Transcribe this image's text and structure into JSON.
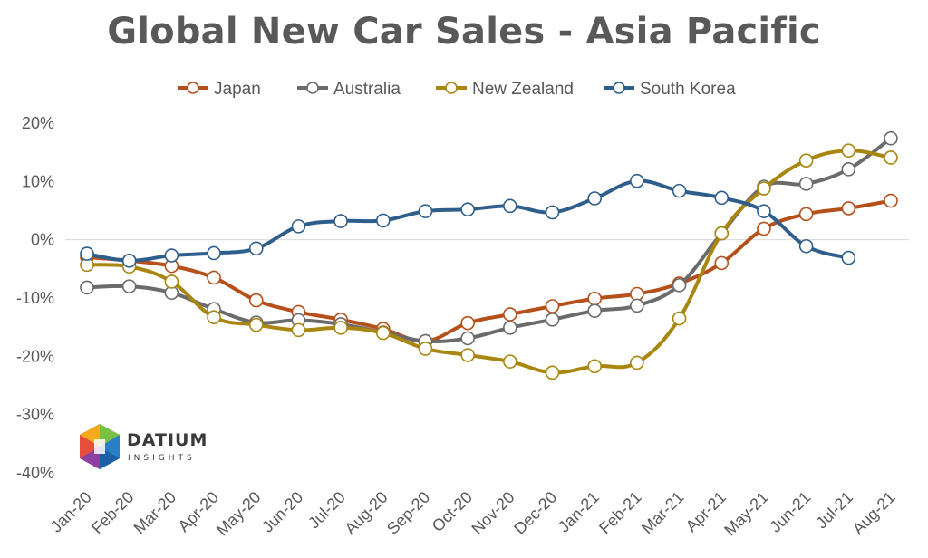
{
  "chart_data": {
    "type": "line",
    "title": "Global New Car Sales - Asia Pacific",
    "xlabel": "",
    "ylabel": "",
    "ylim": [
      -0.4,
      0.2
    ],
    "y_ticks": [
      "20%",
      "10%",
      "0%",
      "-10%",
      "-20%",
      "-30%",
      "-40%"
    ],
    "y_tick_values": [
      0.2,
      0.1,
      0.0,
      -0.1,
      -0.2,
      -0.3,
      -0.4
    ],
    "categories": [
      "Jan-20",
      "Feb-20",
      "Mar-20",
      "Apr-20",
      "May-20",
      "Jun-20",
      "Jul-20",
      "Aug-20",
      "Sep-20",
      "Oct-20",
      "Nov-20",
      "Dec-20",
      "Jan-21",
      "Feb-21",
      "Mar-21",
      "Apr-21",
      "May-21",
      "Jun-21",
      "Jul-21",
      "Aug-21"
    ],
    "legend_position": "top",
    "grid": false,
    "series": [
      {
        "name": "Japan",
        "color": "#B5501A",
        "values": [
          -0.03,
          -0.036,
          -0.045,
          -0.065,
          -0.104,
          -0.124,
          -0.137,
          -0.153,
          -0.174,
          -0.143,
          -0.128,
          -0.114,
          -0.101,
          -0.093,
          -0.075,
          -0.04,
          0.019,
          0.044,
          0.054,
          0.067
        ]
      },
      {
        "name": "Australia",
        "color": "#6B6B6B",
        "values": [
          -0.082,
          -0.08,
          -0.091,
          -0.119,
          -0.142,
          -0.138,
          -0.145,
          -0.159,
          -0.174,
          -0.169,
          -0.151,
          -0.137,
          -0.122,
          -0.113,
          -0.078,
          0.011,
          0.091,
          0.096,
          0.121,
          0.174
        ]
      },
      {
        "name": "New Zealand",
        "color": "#A8860F",
        "values": [
          -0.043,
          -0.046,
          -0.072,
          -0.133,
          -0.146,
          -0.155,
          -0.151,
          -0.16,
          -0.187,
          -0.198,
          -0.209,
          -0.228,
          -0.217,
          -0.211,
          -0.135,
          0.011,
          0.088,
          0.136,
          0.153,
          0.141
        ]
      },
      {
        "name": "South Korea",
        "color": "#2E5E8C",
        "values": [
          -0.024,
          -0.036,
          -0.027,
          -0.023,
          -0.015,
          0.023,
          0.032,
          0.033,
          0.049,
          0.052,
          0.058,
          0.047,
          0.071,
          0.101,
          0.084,
          0.072,
          0.049,
          -0.011,
          -0.031,
          null
        ]
      }
    ]
  },
  "logo": {
    "name": "datium-logo-icon",
    "word": "DATIUM",
    "sub": "INSIGHTS"
  }
}
